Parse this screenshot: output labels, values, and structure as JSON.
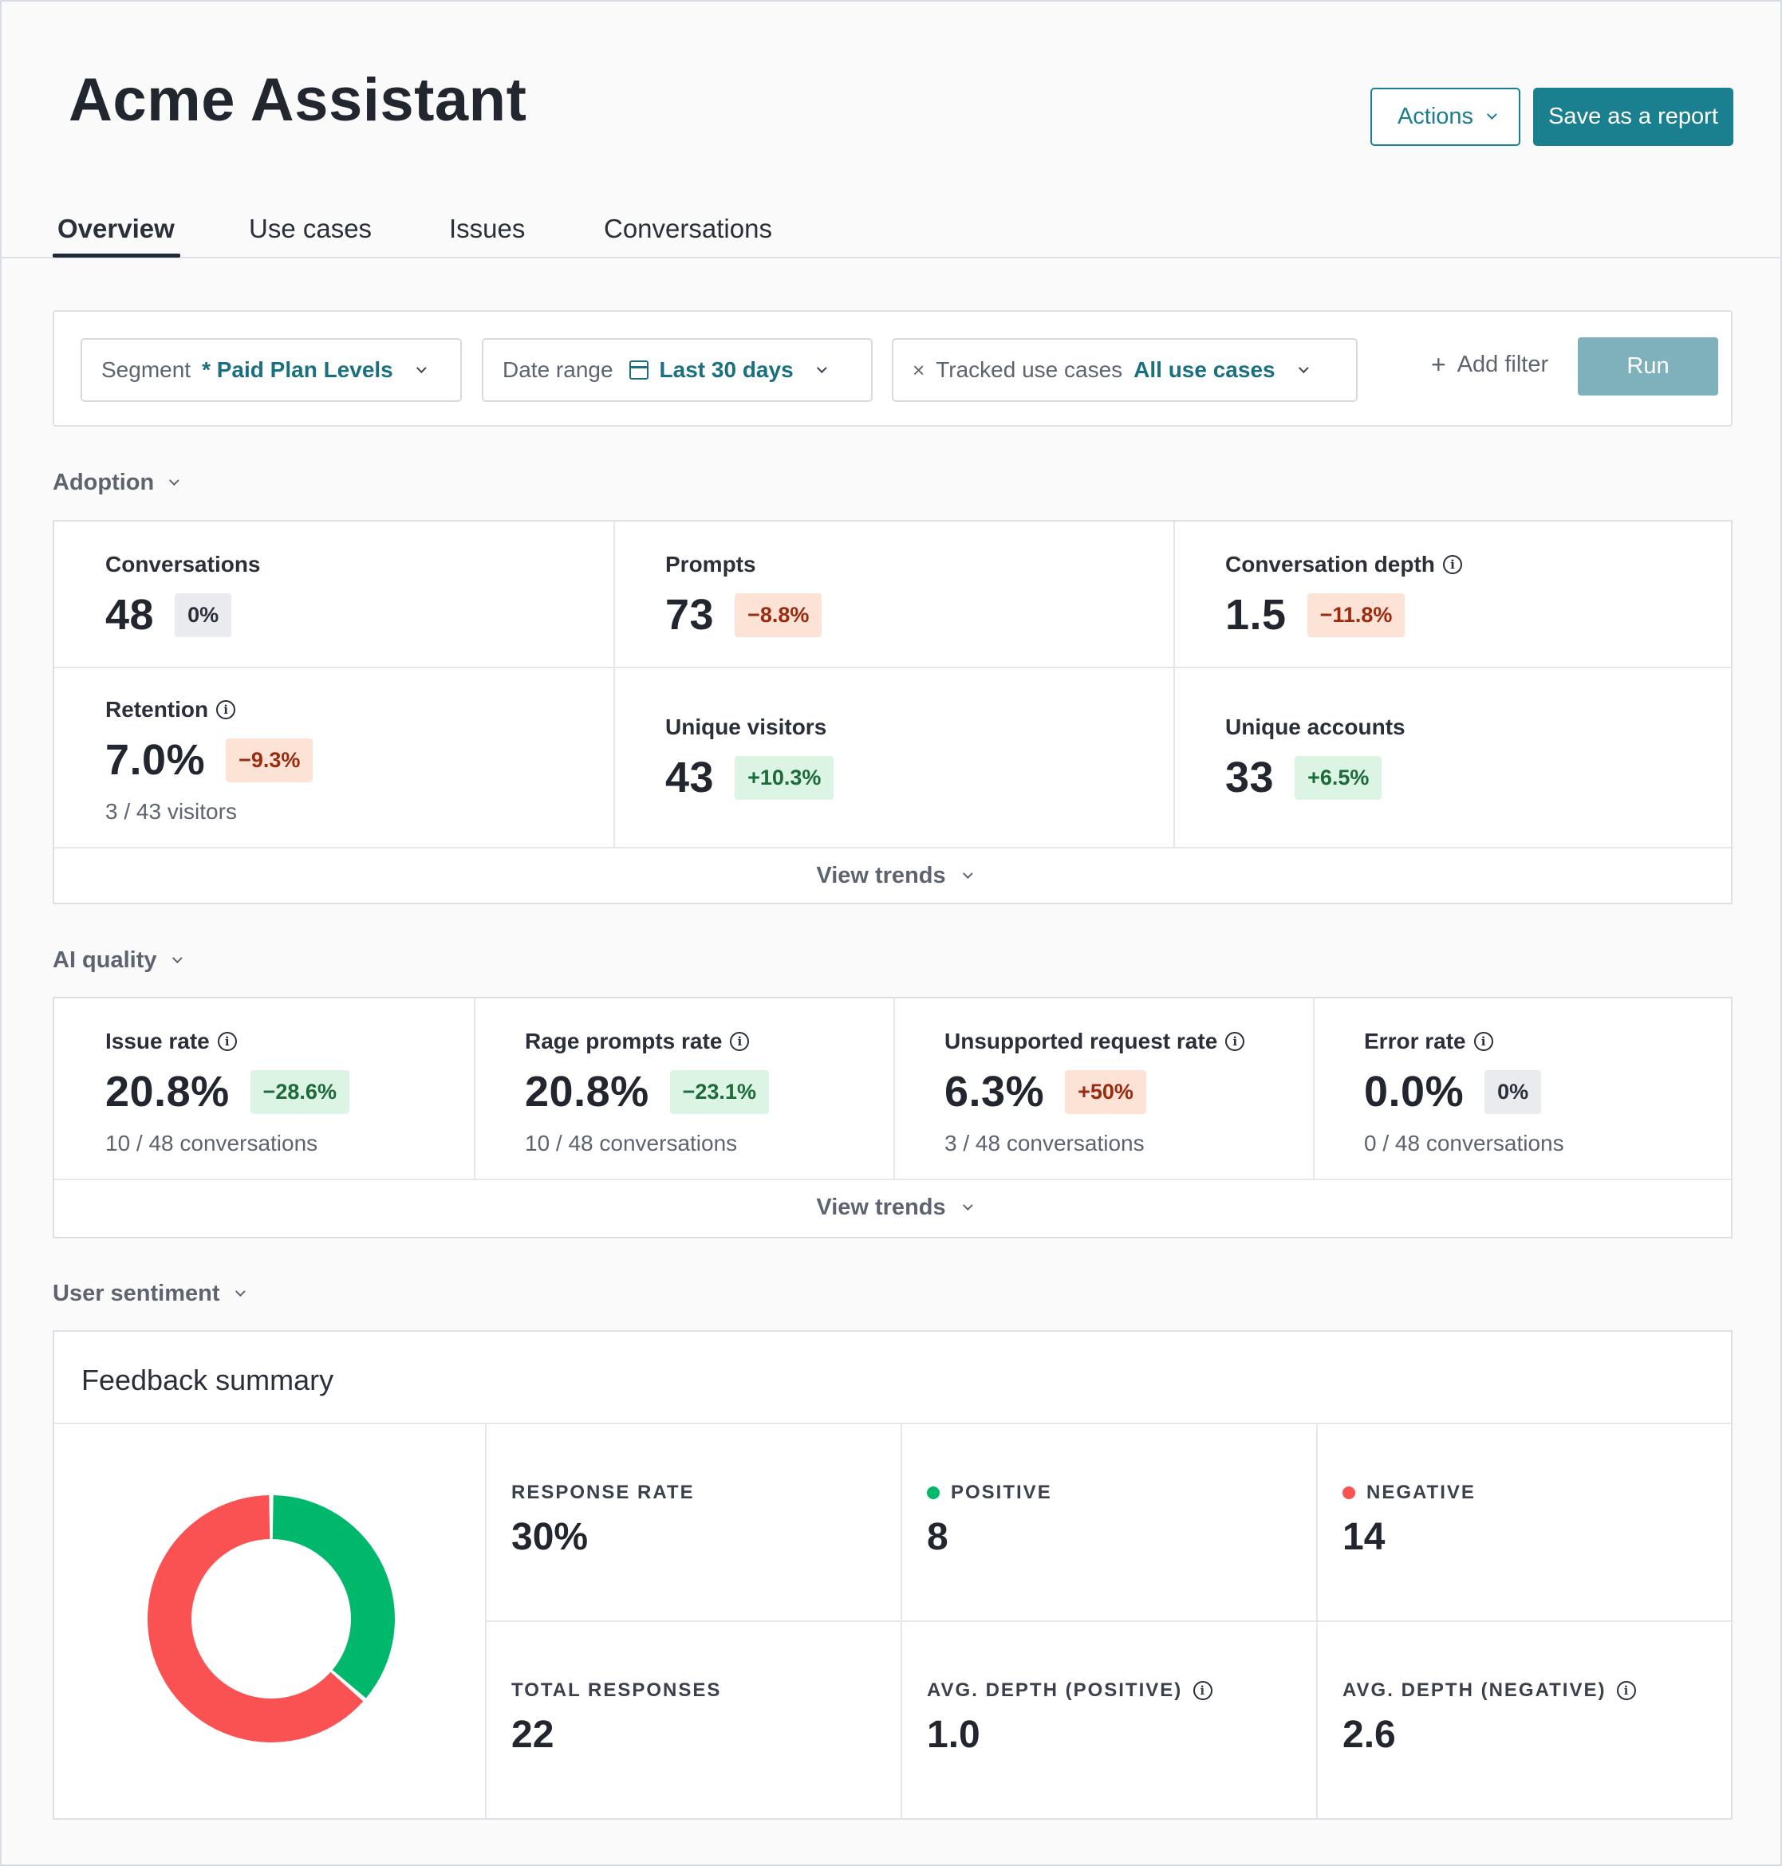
{
  "header": {
    "title": "Acme Assistant",
    "actions_label": "Actions",
    "save_label": "Save as a report"
  },
  "tabs": [
    {
      "label": "Overview",
      "active": true
    },
    {
      "label": "Use cases",
      "active": false
    },
    {
      "label": "Issues",
      "active": false
    },
    {
      "label": "Conversations",
      "active": false
    }
  ],
  "filters": {
    "segment": {
      "label": "Segment",
      "value": "* Paid Plan Levels"
    },
    "date_range": {
      "label": "Date range",
      "value": "Last 30 days"
    },
    "tracked": {
      "remove": "×",
      "label": "Tracked use cases",
      "value": "All use cases"
    },
    "add_filter": {
      "plus": "+",
      "label": "Add filter"
    },
    "run_label": "Run"
  },
  "adoption": {
    "title": "Adoption",
    "metrics": [
      {
        "label": "Conversations",
        "value": "48",
        "change": "0%",
        "tone": "neutral"
      },
      {
        "label": "Prompts",
        "value": "73",
        "change": "−8.8%",
        "tone": "neg"
      },
      {
        "label": "Conversation depth",
        "value": "1.5",
        "change": "−11.8%",
        "tone": "neg"
      },
      {
        "label": "Retention",
        "value": "7.0%",
        "change": "−9.3%",
        "tone": "neg",
        "sub": "3 / 43 visitors"
      },
      {
        "label": "Unique visitors",
        "value": "43",
        "change": "+10.3%",
        "tone": "pos"
      },
      {
        "label": "Unique accounts",
        "value": "33",
        "change": "+6.5%",
        "tone": "pos"
      }
    ],
    "view_trends": "View trends"
  },
  "ai_quality": {
    "title": "AI quality",
    "metrics": [
      {
        "label": "Issue rate",
        "value": "20.8%",
        "change": "−28.6%",
        "tone": "pos",
        "sub": "10 / 48 conversations"
      },
      {
        "label": "Rage prompts rate",
        "value": "20.8%",
        "change": "−23.1%",
        "tone": "pos",
        "sub": "10 / 48 conversations"
      },
      {
        "label": "Unsupported request rate",
        "value": "6.3%",
        "change": "+50%",
        "tone": "neg",
        "sub": "3 / 48 conversations"
      },
      {
        "label": "Error rate",
        "value": "0.0%",
        "change": "0%",
        "tone": "neutral",
        "sub": "0 / 48 conversations"
      }
    ],
    "view_trends": "View trends"
  },
  "sentiment": {
    "title": "User sentiment",
    "card_title": "Feedback summary",
    "stats": {
      "response_rate": {
        "label": "RESPONSE RATE",
        "value": "30%"
      },
      "positive": {
        "label": "POSITIVE",
        "value": "8"
      },
      "negative": {
        "label": "NEGATIVE",
        "value": "14"
      },
      "total": {
        "label": "TOTAL RESPONSES",
        "value": "22"
      },
      "avg_pos": {
        "label": "AVG. DEPTH (POSITIVE)",
        "value": "1.0"
      },
      "avg_neg": {
        "label": "AVG. DEPTH (NEGATIVE)",
        "value": "2.6"
      }
    },
    "donut": {
      "positive": 8,
      "negative": 14
    },
    "colors": {
      "positive": "#00b86b",
      "negative": "#fa5252"
    }
  },
  "colors": {
    "accent": "#1a7f8f",
    "run_disabled": "#7fb1bd"
  }
}
